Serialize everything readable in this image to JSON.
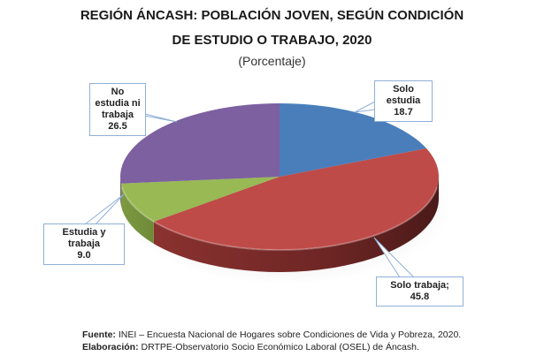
{
  "title_line1": "REGIÓN ÁNCASH: POBLACIÓN JOVEN, SEGÚN CONDICIÓN",
  "title_line2": "DE ESTUDIO O TRABAJO, 2020",
  "subtitle": "(Porcentaje)",
  "labels": {
    "solo_estudia": {
      "name": "Solo estudia",
      "value": "18.7"
    },
    "solo_trabaja": {
      "text": "Solo trabaja; 45.8"
    },
    "estudia_trabaja": {
      "name": "Estudia y trabaja",
      "value": "9.0"
    },
    "no_estudia": {
      "name1": "No estudia ni",
      "name2": "trabaja",
      "value": "26.5"
    }
  },
  "footer": {
    "source_label": "Fuente:",
    "source_text": " INEI – Encuesta Nacional de Hogares sobre Condiciones de Vida y Pobreza, 2020.",
    "elab_label": "Elaboración:",
    "elab_text": " DRTPE-Observatorio Socio Económico Laboral (OSEL) de Áncash."
  },
  "colors": {
    "solo_estudia": "#4a7ebb",
    "solo_trabaja": "#be4b48",
    "estudia_trabaja": "#98b954",
    "no_estudia": "#7d60a0"
  },
  "chart_data": {
    "type": "pie",
    "title": "REGIÓN ÁNCASH: POBLACIÓN JOVEN, SEGÚN CONDICIÓN DE ESTUDIO O TRABAJO, 2020",
    "subtitle": "(Porcentaje)",
    "categories": [
      "Solo estudia",
      "Solo trabaja",
      "Estudia y trabaja",
      "No estudia ni trabaja"
    ],
    "values": [
      18.7,
      45.8,
      9.0,
      26.5
    ],
    "colors": [
      "#4a7ebb",
      "#be4b48",
      "#98b954",
      "#7d60a0"
    ],
    "style": "3d",
    "start_angle": "12 o'clock, clockwise",
    "legend": "none (callout data labels)"
  }
}
